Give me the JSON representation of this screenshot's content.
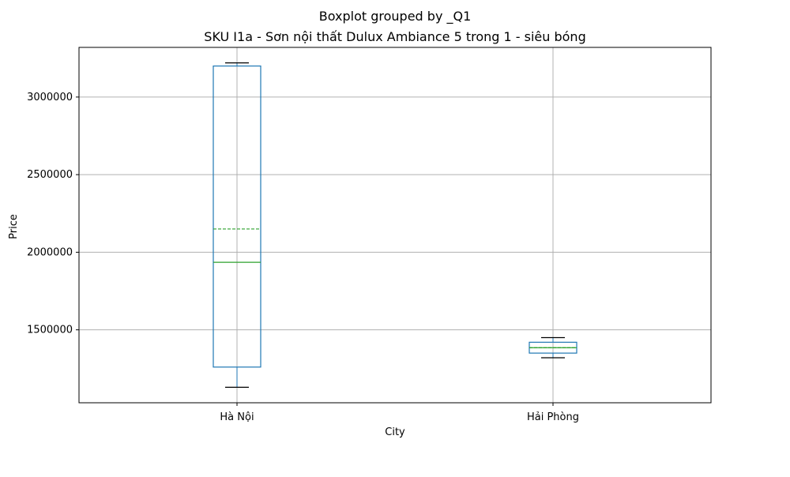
{
  "chart_data": {
    "type": "boxplot",
    "suptitle": "Boxplot grouped by _Q1",
    "title": "SKU I1a - Sơn nội thất Dulux Ambiance 5 trong 1 - siêu bóng",
    "xlabel": "City",
    "ylabel": "Price",
    "categories": [
      "Hà Nội",
      "Hải Phòng"
    ],
    "boxes": [
      {
        "whislo": 1130000,
        "q1": 1260000,
        "med": 1935000,
        "mean": 2150000,
        "q3": 3200000,
        "whishi": 3220000
      },
      {
        "whislo": 1320000,
        "q1": 1350000,
        "med": 1385000,
        "mean": 1385000,
        "q3": 1420000,
        "whishi": 1450000
      }
    ],
    "ylim": [
      1030000,
      3320000
    ],
    "yticks": [
      1500000,
      2000000,
      2500000,
      3000000
    ],
    "ytick_labels": [
      "1500000",
      "2000000",
      "2500000",
      "3000000"
    ],
    "grid": true,
    "colors": {
      "box": "#1f77b4",
      "median": "#2ca02c",
      "mean": "#2ca02c",
      "whisker_cap": "#000000",
      "grid": "#b0b0b0"
    }
  }
}
